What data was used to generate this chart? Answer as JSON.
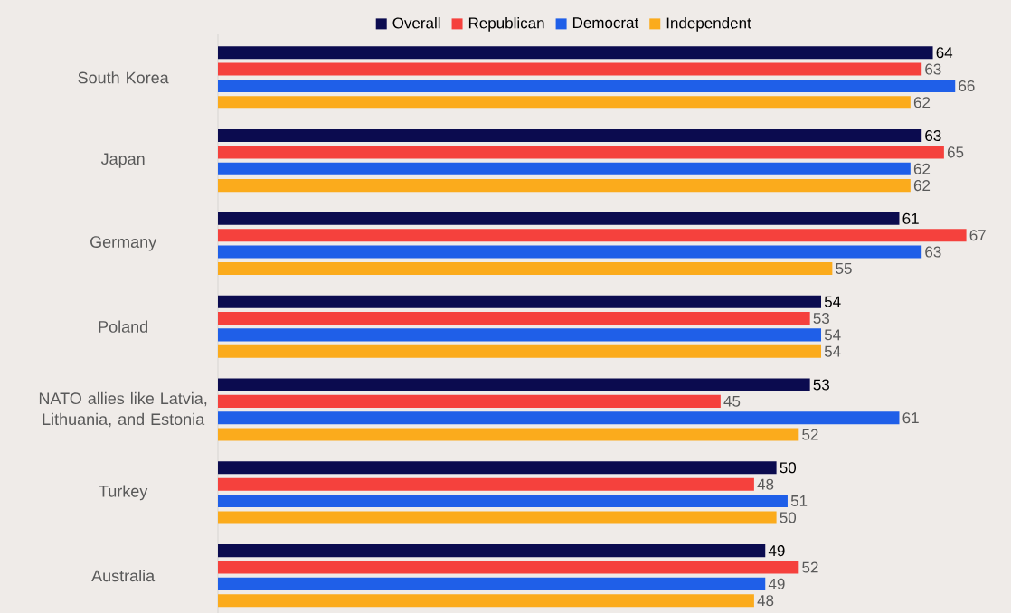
{
  "chart_data": {
    "type": "bar",
    "orientation": "horizontal",
    "categories": [
      "South Korea",
      "Japan",
      "Germany",
      "Poland",
      "NATO allies like Latvia, Lithuania, and Estonia",
      "Turkey",
      "Australia"
    ],
    "series": [
      {
        "name": "Overall",
        "color": "#0b0b4f",
        "values": [
          64,
          63,
          61,
          54,
          53,
          50,
          49
        ]
      },
      {
        "name": "Republican",
        "color": "#f5413d",
        "values": [
          63,
          65,
          67,
          53,
          45,
          48,
          52
        ]
      },
      {
        "name": "Democrat",
        "color": "#1f5fe8",
        "values": [
          66,
          62,
          63,
          54,
          61,
          51,
          49
        ]
      },
      {
        "name": "Independent",
        "color": "#fbab1c",
        "values": [
          62,
          62,
          55,
          54,
          52,
          50,
          48
        ]
      }
    ],
    "xlim": [
      0,
      71
    ],
    "data_labels": true,
    "legend": "top"
  }
}
